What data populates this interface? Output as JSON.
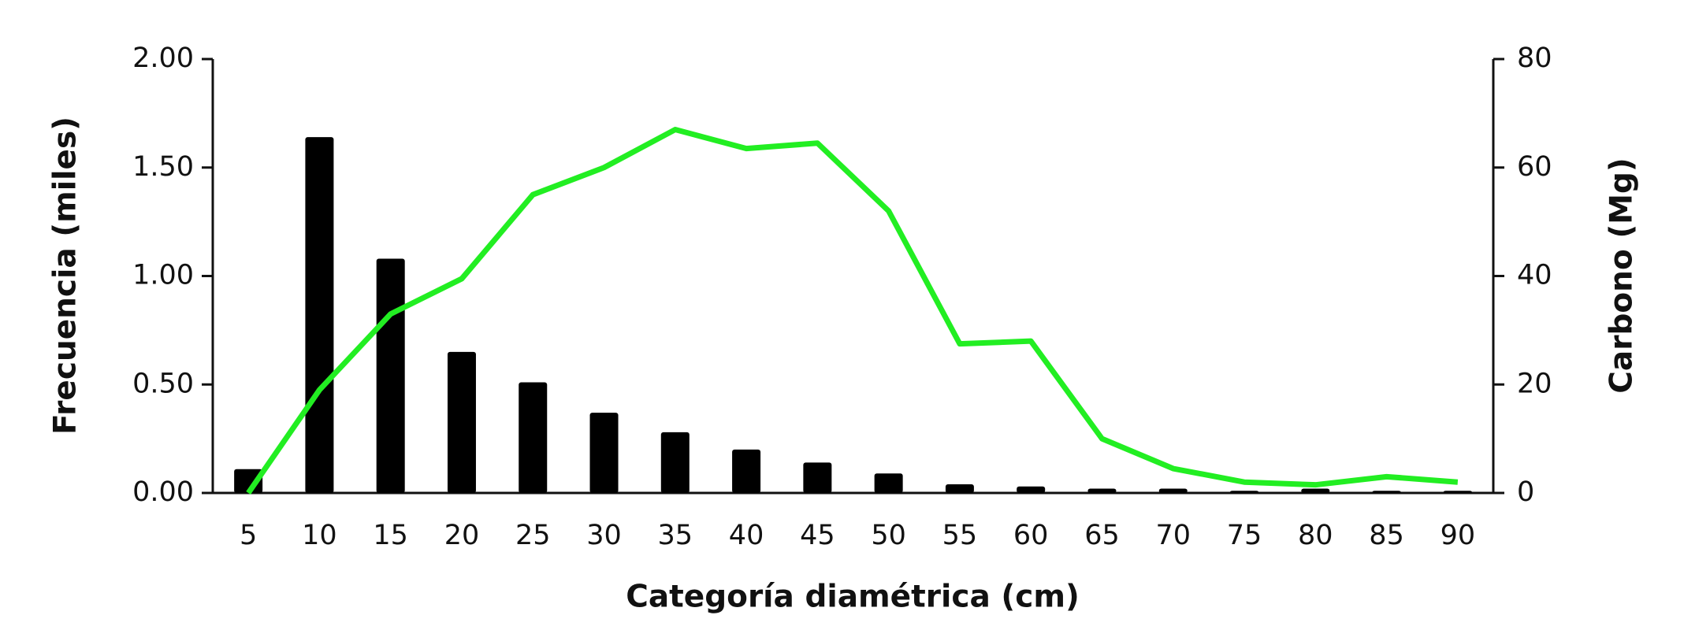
{
  "chart_data": {
    "type": "bar-line",
    "x_label": "Categoría diamétrica (cm)",
    "y_label": "Frecuencia (miles)",
    "y2_label": "Carbono (Mg)",
    "categories": [
      "5",
      "10",
      "15",
      "20",
      "25",
      "30",
      "35",
      "40",
      "45",
      "50",
      "55",
      "60",
      "65",
      "70",
      "75",
      "80",
      "85",
      "90"
    ],
    "series": [
      {
        "type": "bar",
        "color": "#000000",
        "values": [
          0.11,
          1.64,
          1.08,
          0.65,
          0.51,
          0.37,
          0.28,
          0.2,
          0.14,
          0.09,
          0.04,
          0.03,
          0.02,
          0.02,
          0.01,
          0.02,
          0.01,
          0.01
        ]
      },
      {
        "type": "line",
        "axis": "y2",
        "color": "#22ee22",
        "values": [
          0,
          19,
          33,
          39.5,
          55,
          60,
          67,
          63.5,
          64.5,
          52,
          27.5,
          28,
          10,
          4.5,
          2,
          1.5,
          3,
          2
        ]
      }
    ],
    "ylim": [
      0,
      2
    ],
    "yticks": [
      {
        "value": 0,
        "label": "0.00"
      },
      {
        "value": 0.5,
        "label": "0.50"
      },
      {
        "value": 1,
        "label": "1.00"
      },
      {
        "value": 1.5,
        "label": "1.50"
      },
      {
        "value": 2,
        "label": "2.00"
      }
    ],
    "y2lim": [
      0,
      80
    ],
    "y2ticks": [
      0,
      20,
      40,
      60,
      80
    ]
  }
}
